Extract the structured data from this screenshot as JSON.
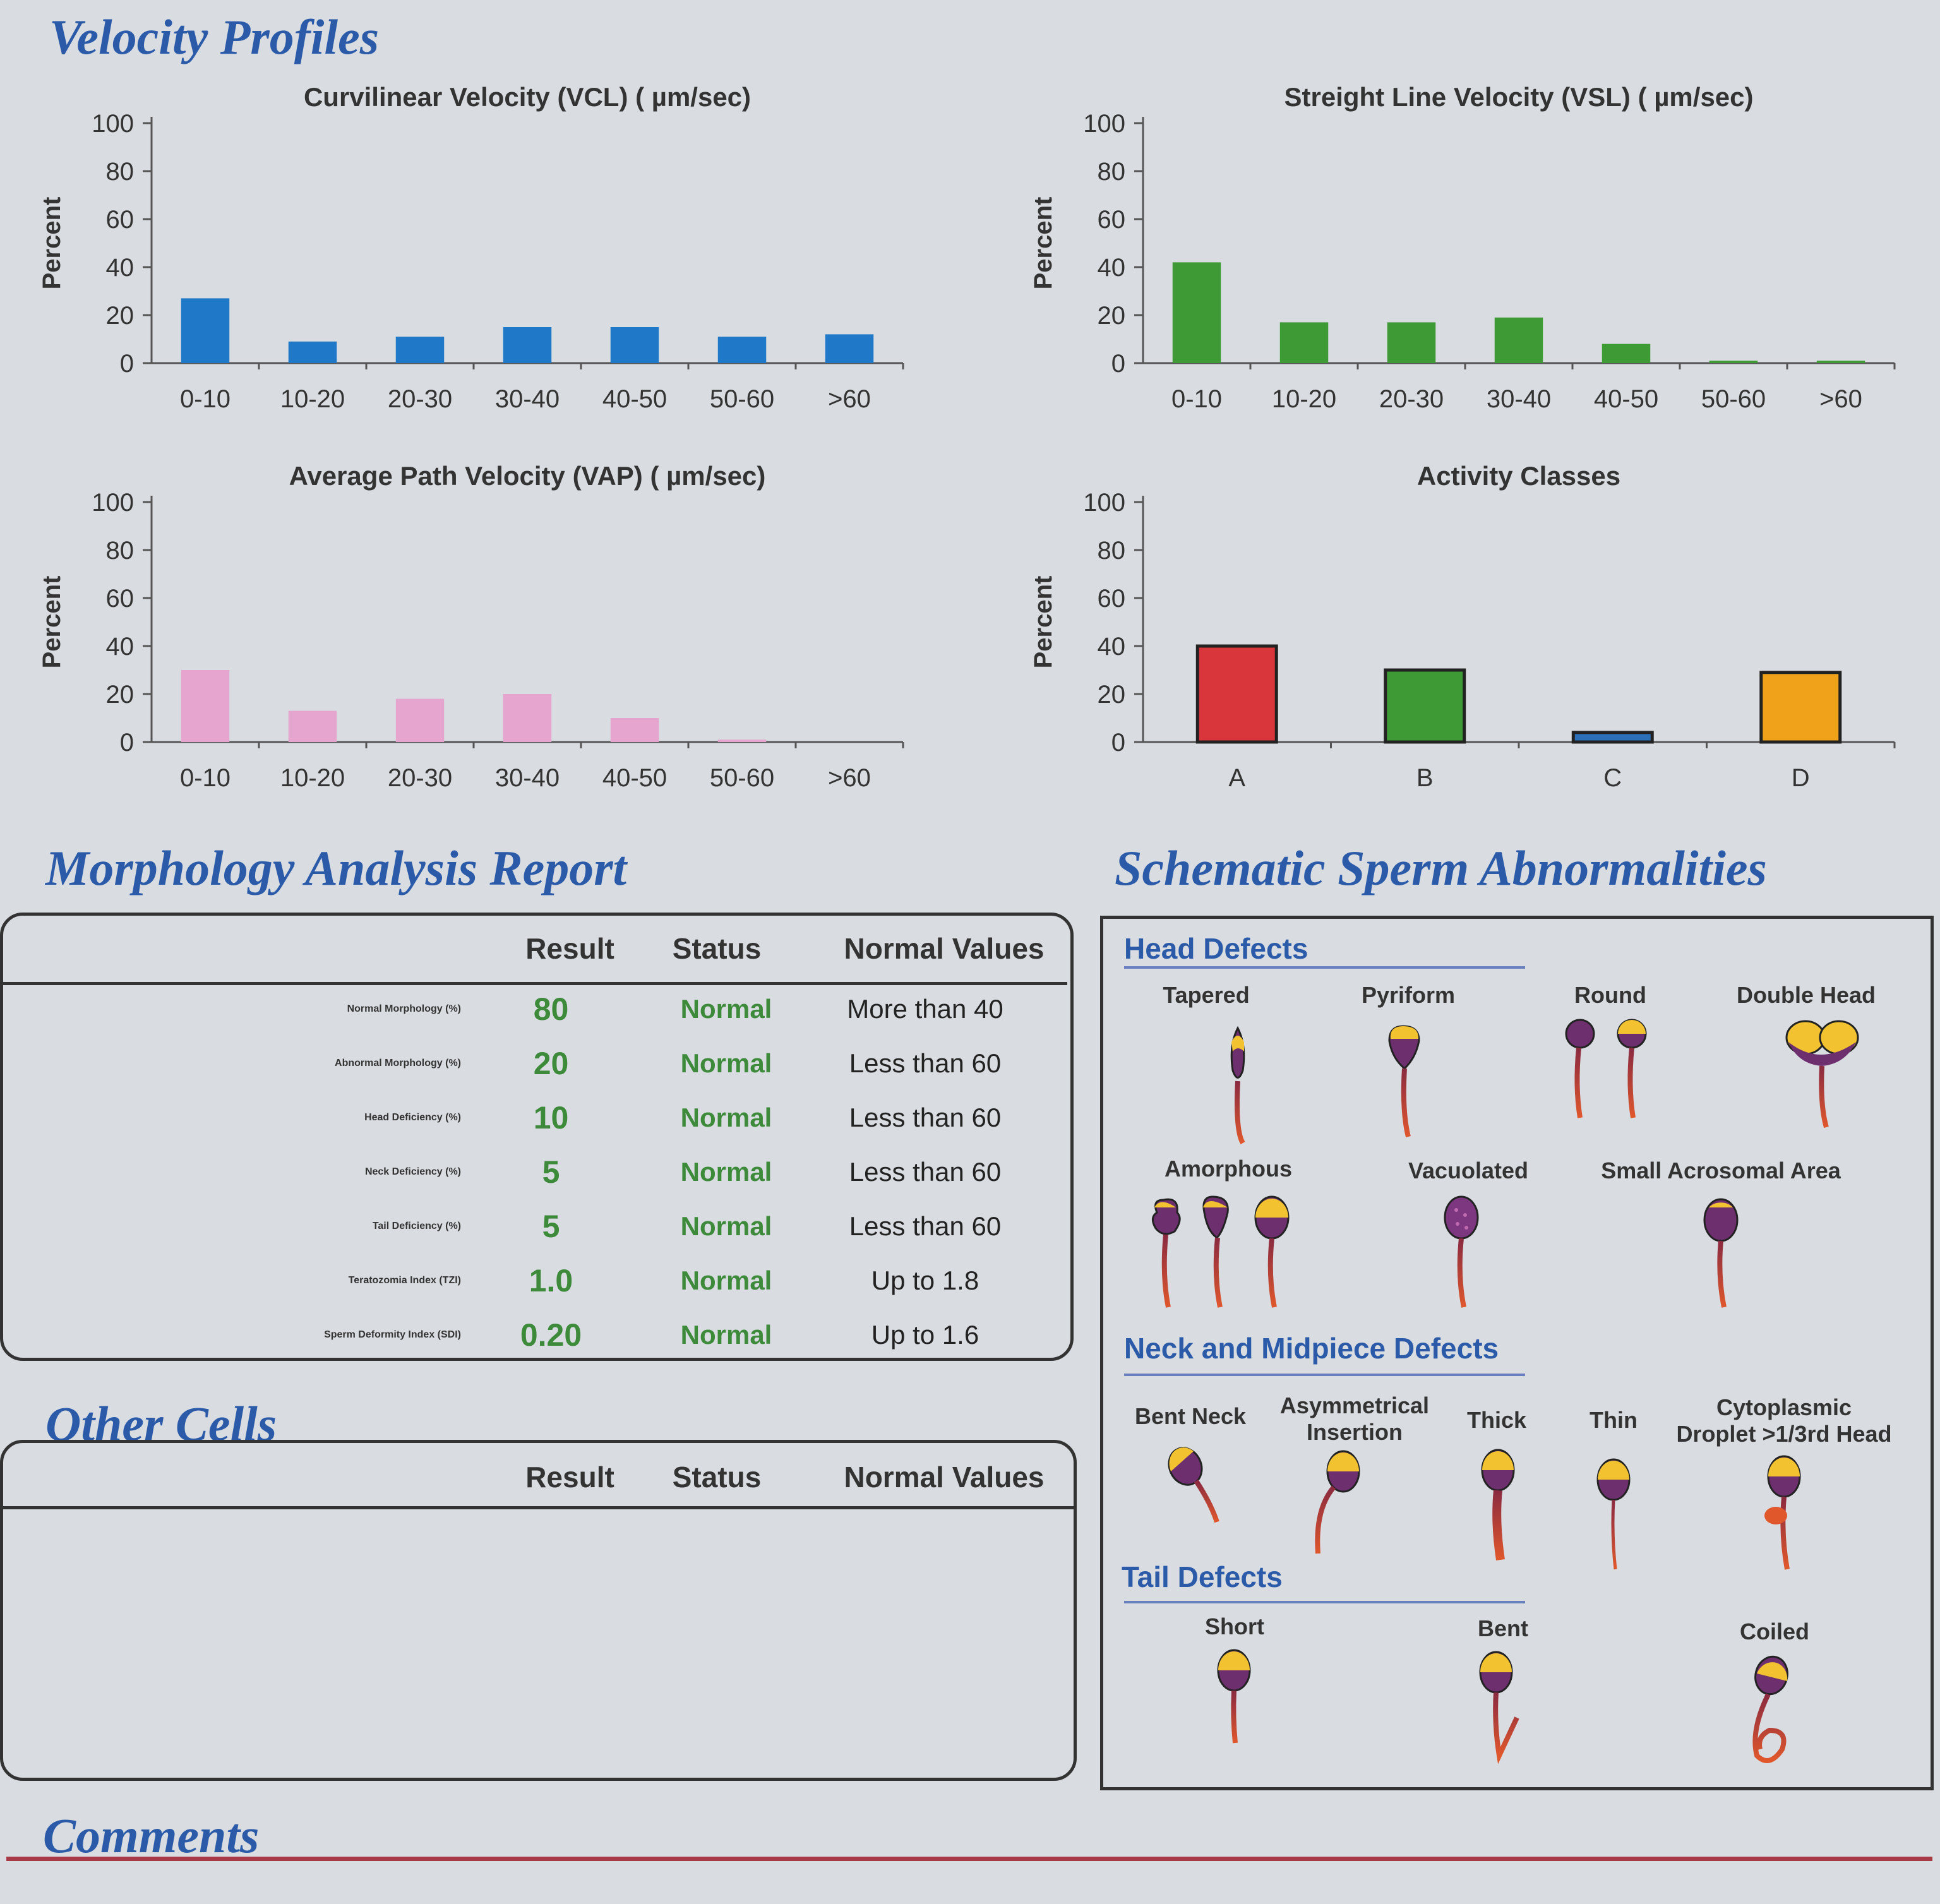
{
  "velocity": {
    "title": "Velocity Profiles",
    "ylabel": "Percent"
  },
  "chart_data": [
    {
      "type": "bar",
      "title": "Curvilinear Velocity (VCL) ( µm/sec)",
      "ylabel": "Percent",
      "categories": [
        "0-10",
        "10-20",
        "20-30",
        "30-40",
        "40-50",
        "50-60",
        ">60"
      ],
      "values": [
        27,
        9,
        11,
        15,
        15,
        11,
        12
      ],
      "ylim": [
        0,
        100
      ],
      "yticks": [
        0,
        20,
        40,
        60,
        80,
        100
      ],
      "color": "#1f78c8"
    },
    {
      "type": "bar",
      "title": "Streight Line Velocity (VSL)  ( µm/sec)",
      "ylabel": "Percent",
      "categories": [
        "0-10",
        "10-20",
        "20-30",
        "30-40",
        "40-50",
        "50-60",
        ">60"
      ],
      "values": [
        42,
        17,
        17,
        19,
        8,
        1,
        1
      ],
      "ylim": [
        0,
        100
      ],
      "yticks": [
        0,
        20,
        40,
        60,
        80,
        100
      ],
      "color": "#3e9a34"
    },
    {
      "type": "bar",
      "title": "Average Path Velocity (VAP) ( µm/sec)",
      "ylabel": "Percent",
      "categories": [
        "0-10",
        "10-20",
        "20-30",
        "30-40",
        "40-50",
        "50-60",
        ">60"
      ],
      "values": [
        30,
        13,
        18,
        20,
        10,
        1,
        0
      ],
      "ylim": [
        0,
        100
      ],
      "yticks": [
        0,
        20,
        40,
        60,
        80,
        100
      ],
      "color": "#e6a5cf"
    },
    {
      "type": "bar",
      "title": "Activity Classes",
      "ylabel": "Percent",
      "categories": [
        "A",
        "B",
        "C",
        "D"
      ],
      "values": [
        40,
        30,
        4,
        29
      ],
      "ylim": [
        0,
        100
      ],
      "yticks": [
        0,
        20,
        40,
        60,
        80,
        100
      ],
      "colors": [
        "#d8363a",
        "#3e9a34",
        "#2a6fb8",
        "#f0a21a"
      ]
    }
  ],
  "morphology": {
    "title": "Morphology Analysis Report",
    "headers": {
      "result": "Result",
      "status": "Status",
      "normal": "Normal Values"
    },
    "rows": [
      {
        "label": "Normal Morphology (%)",
        "result": "80",
        "status": "Normal",
        "normal": "More than  40"
      },
      {
        "label": "Abnormal Morphology (%)",
        "result": "20",
        "status": "Normal",
        "normal": "Less than  60"
      },
      {
        "label": "Head Deficiency (%)",
        "result": "10",
        "status": "Normal",
        "normal": "Less than  60"
      },
      {
        "label": "Neck Deficiency (%)",
        "result": "5",
        "status": "Normal",
        "normal": "Less than  60"
      },
      {
        "label": "Tail Deficiency (%)",
        "result": "5",
        "status": "Normal",
        "normal": "Less than  60"
      },
      {
        "label": "Teratozomia Index (TZI)",
        "result": "1.0",
        "status": "Normal",
        "normal": "Up to 1.8"
      },
      {
        "label": "Sperm Deformity Index (SDI)",
        "result": "0.20",
        "status": "Normal",
        "normal": "Up to 1.6"
      }
    ]
  },
  "other_cells": {
    "title": "Other Cells",
    "headers": {
      "result": "Result",
      "status": "Status",
      "normal": "Normal Values"
    }
  },
  "schematic": {
    "title": "Schematic Sperm Abnormalities",
    "head_defects": {
      "title": "Head Defects",
      "items": [
        "Tapered",
        "Pyriform",
        "Round",
        "Double Head",
        "Amorphous",
        "Vacuolated",
        "Small Acrosomal Area"
      ]
    },
    "neck_defects": {
      "title": "Neck and Midpiece Defects",
      "items": [
        "Bent Neck",
        "Asymmetrical\nInsertion",
        "Thick",
        "Thin",
        "Cytoplasmic\nDroplet >1/3rd Head"
      ]
    },
    "tail_defects": {
      "title": "Tail Defects",
      "items": [
        "Short",
        "Bent",
        "Coiled"
      ]
    }
  },
  "comments": {
    "title": "Comments"
  }
}
